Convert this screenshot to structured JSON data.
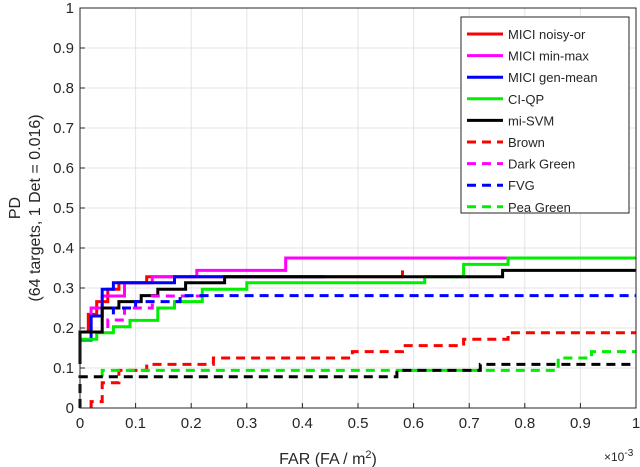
{
  "chart_data": {
    "type": "line",
    "title": "",
    "xlabel": "FAR (FA / m²)",
    "ylabel_line1": "PD",
    "ylabel_line2": "(64 targets, 1 Det = 0.016)",
    "x_exponent_label": "×10",
    "x_exponent_power": "-3",
    "xlim": [
      0,
      1
    ],
    "ylim": [
      0,
      1
    ],
    "grid": true,
    "legend_position": "top-right",
    "xticks": [
      "0",
      "0.1",
      "0.2",
      "0.3",
      "0.4",
      "0.5",
      "0.6",
      "0.7",
      "0.8",
      "0.9",
      "1"
    ],
    "yticks": [
      "0",
      "0.1",
      "0.2",
      "0.3",
      "0.4",
      "0.5",
      "0.6",
      "0.7",
      "0.8",
      "0.9",
      "1"
    ],
    "series": [
      {
        "name": "MICI noisy-or",
        "color": "#ff0000",
        "dash": "solid",
        "x": [
          0,
          0,
          0.015,
          0.015,
          0.03,
          0.03,
          0.05,
          0.05,
          0.07,
          0.07,
          0.12,
          0.12,
          0.16,
          0.16,
          0.35,
          0.35,
          0.58,
          0.58
        ],
        "y": [
          0.125,
          0.19,
          0.19,
          0.234,
          0.234,
          0.266,
          0.266,
          0.297,
          0.297,
          0.313,
          0.313,
          0.328,
          0.328,
          0.328,
          0.328,
          0.328,
          0.328,
          0.344
        ]
      },
      {
        "name": "MICI min-max",
        "color": "#ff00ff",
        "dash": "solid",
        "x": [
          0,
          0,
          0.02,
          0.02,
          0.04,
          0.04,
          0.08,
          0.08,
          0.13,
          0.13,
          0.21,
          0.21,
          0.37,
          0.37,
          0.77
        ],
        "y": [
          0.14,
          0.19,
          0.19,
          0.25,
          0.25,
          0.28,
          0.28,
          0.313,
          0.313,
          0.328,
          0.328,
          0.344,
          0.344,
          0.375,
          0.375
        ]
      },
      {
        "name": "MICI gen-mean",
        "color": "#0000ff",
        "dash": "solid",
        "x": [
          0,
          0,
          0.02,
          0.02,
          0.04,
          0.04,
          0.06,
          0.06,
          0.1,
          0.1,
          0.17,
          0.17,
          0.44
        ],
        "y": [
          0.11,
          0.17,
          0.17,
          0.23,
          0.23,
          0.297,
          0.297,
          0.313,
          0.313,
          0.313,
          0.313,
          0.328,
          0.328
        ]
      },
      {
        "name": "CI-QP",
        "color": "#00ee00",
        "dash": "solid",
        "x": [
          0,
          0,
          0.03,
          0.03,
          0.06,
          0.06,
          0.09,
          0.09,
          0.14,
          0.14,
          0.17,
          0.17,
          0.22,
          0.22,
          0.3,
          0.3,
          0.62,
          0.62,
          0.69,
          0.69,
          0.77,
          0.77,
          1.0
        ],
        "y": [
          0.125,
          0.172,
          0.172,
          0.188,
          0.188,
          0.203,
          0.203,
          0.219,
          0.219,
          0.25,
          0.25,
          0.266,
          0.266,
          0.297,
          0.297,
          0.313,
          0.313,
          0.328,
          0.328,
          0.359,
          0.359,
          0.375,
          0.375
        ]
      },
      {
        "name": "mi-SVM",
        "color": "#000000",
        "dash": "solid",
        "x": [
          0,
          0,
          0.04,
          0.04,
          0.07,
          0.07,
          0.11,
          0.11,
          0.14,
          0.14,
          0.19,
          0.19,
          0.26,
          0.26,
          0.58,
          0.58,
          0.76,
          0.76,
          1.0
        ],
        "y": [
          0.11,
          0.19,
          0.19,
          0.25,
          0.25,
          0.266,
          0.266,
          0.281,
          0.281,
          0.297,
          0.297,
          0.313,
          0.313,
          0.328,
          0.328,
          0.328,
          0.328,
          0.344,
          0.344
        ]
      },
      {
        "name": "Brown",
        "color": "#ff0000",
        "dash": "dashed",
        "x": [
          0.02,
          0.02,
          0.04,
          0.04,
          0.07,
          0.07,
          0.12,
          0.12,
          0.24,
          0.24,
          0.49,
          0.49,
          0.58,
          0.58,
          0.69,
          0.69,
          0.77,
          0.77,
          1.0
        ],
        "y": [
          0.0,
          0.016,
          0.016,
          0.063,
          0.063,
          0.094,
          0.094,
          0.109,
          0.109,
          0.125,
          0.125,
          0.141,
          0.141,
          0.156,
          0.156,
          0.172,
          0.172,
          0.188,
          0.188
        ]
      },
      {
        "name": "Dark Green",
        "color": "#ff00ff",
        "dash": "dashed",
        "x": [
          0.05,
          0.05,
          0.08,
          0.08,
          0.13,
          0.13,
          0.22
        ],
        "y": [
          0.2,
          0.22,
          0.22,
          0.25,
          0.25,
          0.28,
          0.28
        ]
      },
      {
        "name": "FVG",
        "color": "#0000ff",
        "dash": "dashed",
        "x": [
          0.06,
          0.06,
          0.1,
          0.1,
          0.18,
          0.18,
          1.0
        ],
        "y": [
          0.234,
          0.25,
          0.25,
          0.266,
          0.266,
          0.281,
          0.281
        ]
      },
      {
        "name": "Pea Green",
        "color": "#00ee00",
        "dash": "dashed",
        "x": [
          0.04,
          0.04,
          0.24,
          0.24,
          0.58,
          0.58,
          0.86,
          0.86,
          0.92,
          0.92,
          1.0
        ],
        "y": [
          0.078,
          0.094,
          0.094,
          0.094,
          0.094,
          0.094,
          0.094,
          0.125,
          0.125,
          0.141,
          0.141
        ]
      },
      {
        "name": "",
        "color": "#000000",
        "dash": "dashed",
        "x": [
          0,
          0,
          0.02,
          0.02,
          0.57,
          0.57,
          0.72,
          0.72,
          1.0
        ],
        "y": [
          0.0,
          0.078,
          0.078,
          0.078,
          0.078,
          0.094,
          0.094,
          0.109,
          0.109
        ]
      }
    ],
    "legend_entries": [
      {
        "name": "MICI noisy-or",
        "color": "#ff0000",
        "dash": "solid"
      },
      {
        "name": "MICI min-max",
        "color": "#ff00ff",
        "dash": "solid"
      },
      {
        "name": "MICI gen-mean",
        "color": "#0000ff",
        "dash": "solid"
      },
      {
        "name": "CI-QP",
        "color": "#00ee00",
        "dash": "solid"
      },
      {
        "name": "mi-SVM",
        "color": "#000000",
        "dash": "solid"
      },
      {
        "name": "Brown",
        "color": "#ff0000",
        "dash": "dashed"
      },
      {
        "name": "Dark Green",
        "color": "#ff00ff",
        "dash": "dashed"
      },
      {
        "name": "FVG",
        "color": "#0000ff",
        "dash": "dashed"
      },
      {
        "name": "Pea Green",
        "color": "#00ee00",
        "dash": "dashed"
      }
    ]
  }
}
